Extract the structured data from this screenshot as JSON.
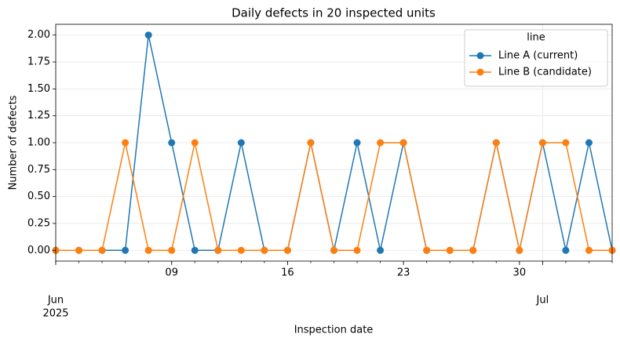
{
  "chart_data": {
    "type": "line",
    "title": "Daily defects in 20 inspected units",
    "x_label": "Inspection date",
    "y_label": "Number of defects",
    "x": [
      "2025-06-02",
      "2025-06-03",
      "2025-06-04",
      "2025-06-05",
      "2025-06-06",
      "2025-06-09",
      "2025-06-10",
      "2025-06-11",
      "2025-06-12",
      "2025-06-13",
      "2025-06-16",
      "2025-06-17",
      "2025-06-18",
      "2025-06-19",
      "2025-06-20",
      "2025-06-23",
      "2025-06-24",
      "2025-06-25",
      "2025-06-26",
      "2025-06-27",
      "2025-06-30",
      "2025-07-01",
      "2025-07-02",
      "2025-07-03",
      "2025-07-04"
    ],
    "series": [
      {
        "name": "Line A (current)",
        "color": "#1f77b4",
        "values": [
          0,
          0,
          0,
          0,
          2,
          1,
          0,
          0,
          1,
          0,
          0,
          1,
          0,
          1,
          0,
          1,
          0,
          0,
          0,
          1,
          0,
          1,
          0,
          1,
          0
        ]
      },
      {
        "name": "Line B (candidate)",
        "color": "#ff7f0e",
        "values": [
          0,
          0,
          0,
          1,
          0,
          0,
          1,
          0,
          0,
          0,
          0,
          1,
          0,
          0,
          1,
          1,
          0,
          0,
          0,
          1,
          0,
          1,
          1,
          0,
          0
        ]
      }
    ],
    "xticks": [
      {
        "value": "2025-06-09",
        "label": "09"
      },
      {
        "value": "2025-06-16",
        "label": "16"
      },
      {
        "value": "2025-06-23",
        "label": "23"
      },
      {
        "value": "2025-06-30",
        "label": "30"
      }
    ],
    "month_ticks": [
      {
        "value": "2025-06-02",
        "label": "Jun",
        "year": "2025"
      },
      {
        "value": "2025-07-01",
        "label": "Jul"
      }
    ],
    "ylim": [
      -0.1,
      2.1
    ],
    "yticks": [
      {
        "value": 0,
        "label": "0.00"
      },
      {
        "value": 0.25,
        "label": "0.25"
      },
      {
        "value": 0.5,
        "label": "0.50"
      },
      {
        "value": 0.75,
        "label": "0.75"
      },
      {
        "value": 1,
        "label": "1.00"
      },
      {
        "value": 1.25,
        "label": "1.25"
      },
      {
        "value": 1.5,
        "label": "1.50"
      },
      {
        "value": 1.75,
        "label": "1.75"
      },
      {
        "value": 2,
        "label": "2.00"
      }
    ],
    "grid": true,
    "legend_title": "line",
    "legend_position": "upper right"
  }
}
